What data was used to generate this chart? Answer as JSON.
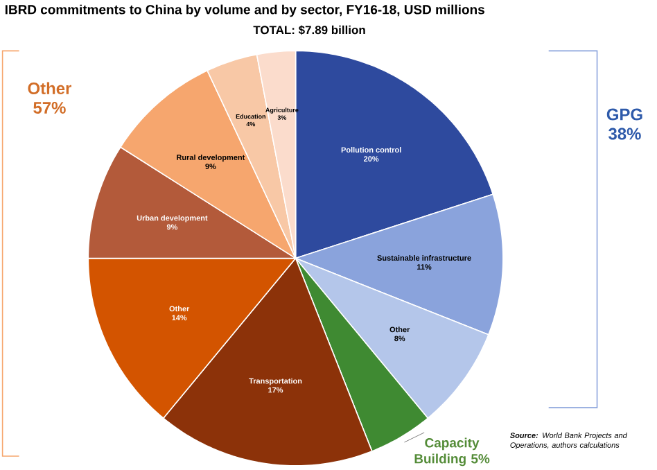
{
  "chart_data": {
    "type": "pie",
    "title": "IBRD commitments to China by volume and by sector, FY16-18, USD millions",
    "subtitle": "TOTAL: $7.89 billion",
    "categories": [
      "Pollution control",
      "Sustainable infrastructure",
      "Other",
      null,
      "Transportation",
      "Other",
      "Urban development",
      "Rural development",
      "Education",
      "Agriculture"
    ],
    "values": [
      20,
      11,
      8,
      5,
      17,
      14,
      9,
      9,
      4,
      3
    ],
    "colors": [
      "#2e4a9e",
      "#8aa3dc",
      "#b4c6ea",
      "#3f8a32",
      "#8c3209",
      "#d35400",
      "#b35a3a",
      "#f6a66e",
      "#f8c8a6",
      "#fbdccc"
    ],
    "value_labels": [
      "20%",
      "11%",
      "8%",
      null,
      "17%",
      "14%",
      "9%",
      "9%",
      "4%",
      "3%"
    ],
    "annotations": [
      "GPG 38%",
      "Capacity Building 5%",
      "Other 57%",
      "**Source:** World Bank Projects and Operations, authors calculations"
    ]
  }
}
